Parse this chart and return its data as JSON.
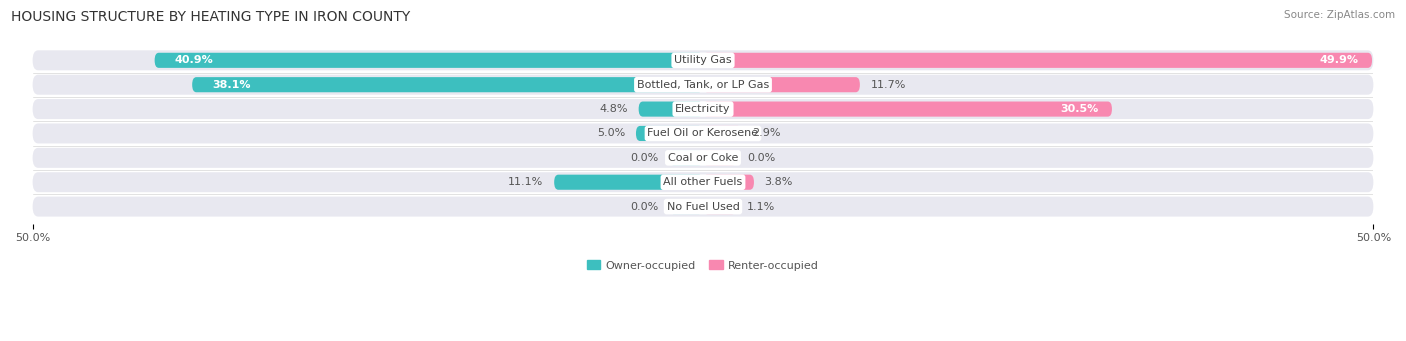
{
  "title": "HOUSING STRUCTURE BY HEATING TYPE IN IRON COUNTY",
  "source": "Source: ZipAtlas.com",
  "categories": [
    "Utility Gas",
    "Bottled, Tank, or LP Gas",
    "Electricity",
    "Fuel Oil or Kerosene",
    "Coal or Coke",
    "All other Fuels",
    "No Fuel Used"
  ],
  "owner_values": [
    40.9,
    38.1,
    4.8,
    5.0,
    0.0,
    11.1,
    0.0
  ],
  "renter_values": [
    49.9,
    11.7,
    30.5,
    2.9,
    0.0,
    3.8,
    1.1
  ],
  "owner_color": "#3DBFBF",
  "owner_color_light": "#8ADADA",
  "renter_color": "#F888B0",
  "renter_color_light": "#F8B8CC",
  "owner_label": "Owner-occupied",
  "renter_label": "Renter-occupied",
  "axis_max": 50.0,
  "background_color": "#ffffff",
  "row_bg_color": "#e8e8f0",
  "title_fontsize": 10,
  "source_fontsize": 7.5,
  "bar_label_fontsize": 8,
  "category_label_fontsize": 8,
  "legend_fontsize": 8,
  "axis_label_fontsize": 8
}
